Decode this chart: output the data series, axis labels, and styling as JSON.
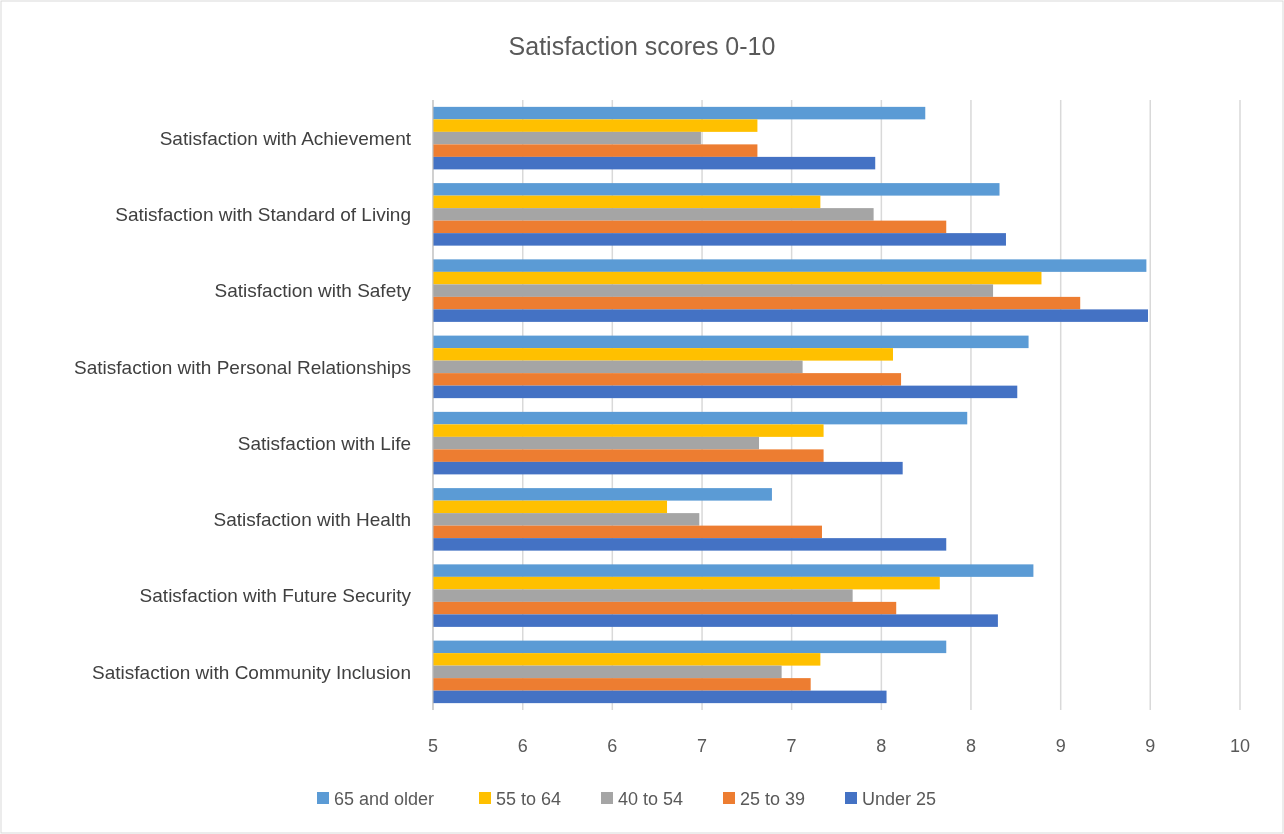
{
  "chart_data": {
    "type": "bar",
    "orientation": "horizontal",
    "title": "Satisfaction scores 0-10",
    "categories": [
      "Satisfaction with Achievement",
      "Satisfaction with Standard of Living",
      "Satisfaction with Safety",
      "Satisfaction with Personal Relationships",
      "Satisfaction with Life",
      "Satisfaction with Health",
      "Satisfaction with Future Security",
      "Satisfaction with Community Inclusion"
    ],
    "series": [
      {
        "name": "65 and older",
        "color": "#5b9bd5",
        "values": [
          8.05,
          8.51,
          9.42,
          8.69,
          8.31,
          7.1,
          8.72,
          8.18
        ]
      },
      {
        "name": "55 to 64",
        "color": "#ffc000",
        "values": [
          7.01,
          7.4,
          8.77,
          7.85,
          7.42,
          6.45,
          8.14,
          7.4
        ]
      },
      {
        "name": "40 to 54",
        "color": "#a5a5a5",
        "values": [
          6.66,
          7.73,
          8.47,
          7.29,
          7.02,
          6.65,
          7.6,
          7.16
        ]
      },
      {
        "name": "25 to 39",
        "color": "#ed7d31",
        "values": [
          7.01,
          8.18,
          9.01,
          7.9,
          7.42,
          7.41,
          7.87,
          7.34
        ]
      },
      {
        "name": "Under 25",
        "color": "#4472c4",
        "values": [
          7.74,
          8.55,
          9.43,
          8.62,
          7.91,
          8.18,
          8.5,
          7.81
        ]
      }
    ],
    "xlim": [
      5,
      10
    ],
    "xticks": [
      5,
      {
        "value": 5.556,
        "label": "6"
      },
      {
        "value": 6.111,
        "label": "6"
      },
      {
        "value": 6.667,
        "label": "7"
      },
      {
        "value": 7.222,
        "label": "7"
      },
      {
        "value": 7.778,
        "label": "8"
      },
      {
        "value": 8.333,
        "label": "8"
      },
      {
        "value": 8.889,
        "label": "9"
      },
      {
        "value": 9.444,
        "label": "9"
      },
      10
    ],
    "grid": "x",
    "legend": "bottom"
  }
}
